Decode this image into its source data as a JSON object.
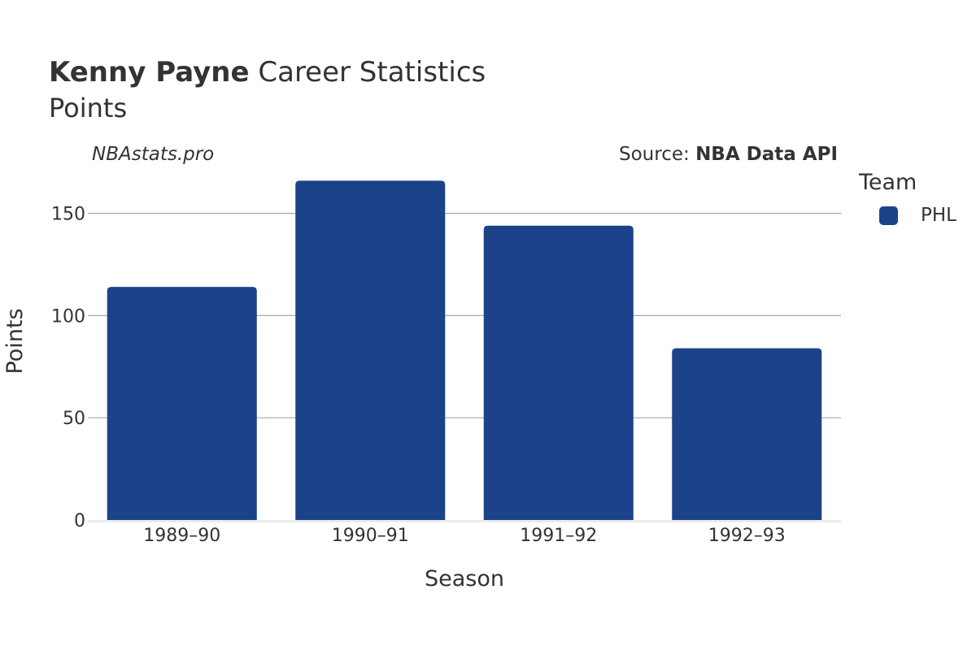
{
  "header": {
    "title_bold": "Kenny Payne",
    "title_rest": "Career Statistics",
    "subtitle": "Points",
    "watermark": "NBAstats.pro",
    "source_prefix": "Source: ",
    "source_bold": "NBA Data API"
  },
  "legend": {
    "title": "Team",
    "items": [
      {
        "label": "PHL",
        "color": "#1c4389"
      }
    ]
  },
  "chart_data": {
    "type": "bar",
    "title": "Kenny Payne Career Statistics",
    "subtitle": "Points",
    "xlabel": "Season",
    "ylabel": "Points",
    "categories": [
      "1989–90",
      "1990–91",
      "1991–92",
      "1992–93"
    ],
    "series": [
      {
        "name": "PHL",
        "color": "#1c4389",
        "values": [
          114,
          166,
          144,
          84
        ]
      }
    ],
    "ylim": [
      0,
      170
    ],
    "yticks": [
      0,
      50,
      100,
      150
    ],
    "grid": true,
    "legend_position": "right"
  }
}
